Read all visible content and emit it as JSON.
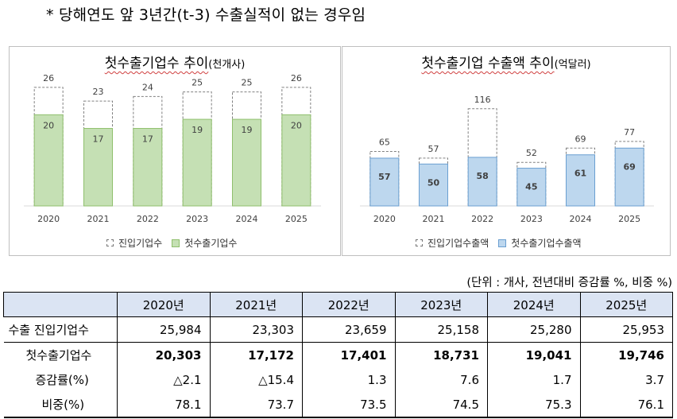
{
  "note": "* 당해연도 앞 3년간(t-3) 수출실적이 없는 경우임",
  "chart_data": [
    {
      "type": "bar",
      "title": "첫수출기업수 추이",
      "unit": "(천개사)",
      "categories": [
        "2020",
        "2021",
        "2022",
        "2023",
        "2024",
        "2025"
      ],
      "series": [
        {
          "name": "진입기업수",
          "values": [
            26,
            23,
            24,
            25,
            25,
            26
          ],
          "style": "dashed-outline"
        },
        {
          "name": "첫수출기업수",
          "values": [
            20,
            17,
            17,
            19,
            19,
            20
          ],
          "color": "#c5e0b4",
          "edge": "#8fbf6c"
        }
      ],
      "ylim": [
        0,
        30
      ]
    },
    {
      "type": "bar",
      "title": "첫수출기업 수출액 추이",
      "unit": "(억달러)",
      "categories": [
        "2020",
        "2021",
        "2022",
        "2023",
        "2024",
        "2025"
      ],
      "series": [
        {
          "name": "진입기업수출액",
          "values": [
            65,
            57,
            116,
            52,
            69,
            77
          ],
          "style": "dashed-outline"
        },
        {
          "name": "첫수출기업수출액",
          "values": [
            57,
            50,
            58,
            45,
            61,
            69
          ],
          "color": "#bdd7ee",
          "edge": "#6a9fd1"
        }
      ],
      "ylim": [
        0,
        130
      ]
    }
  ],
  "table": {
    "unit_note": "(단위 : 개사, 전년대비 증감률 %, 비중 %)",
    "headers": [
      "",
      "2020년",
      "2021년",
      "2022년",
      "2023년",
      "2024년",
      "2025년"
    ],
    "rows": [
      {
        "label": "수출 진입기업수",
        "values": [
          "25,984",
          "23,303",
          "23,659",
          "25,158",
          "25,280",
          "25,953"
        ]
      },
      {
        "label": "첫수출기업수",
        "values": [
          "20,303",
          "17,172",
          "17,401",
          "18,731",
          "19,041",
          "19,746"
        ]
      },
      {
        "label": "증감률(%)",
        "values": [
          "△2.1",
          "△15.4",
          "1.3",
          "7.6",
          "1.7",
          "3.7"
        ]
      },
      {
        "label": "비중(%)",
        "values": [
          "78.1",
          "73.7",
          "73.5",
          "74.5",
          "75.3",
          "76.1"
        ]
      }
    ]
  }
}
